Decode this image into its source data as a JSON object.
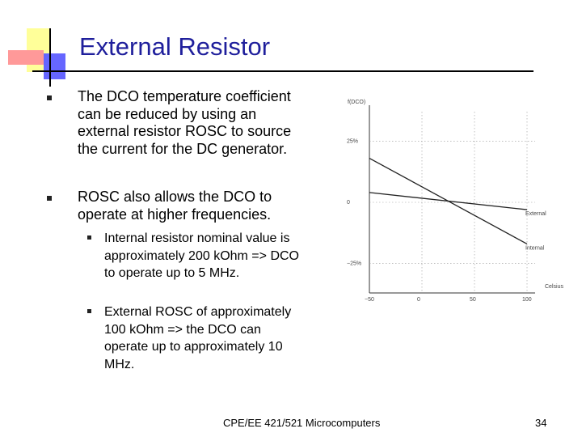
{
  "slide": {
    "title": "External Resistor",
    "bullets": [
      "The DCO temperature coefficient can be reduced by using an external resistor ROSC to source the current for the DC generator.",
      "ROSC also allows the DCO to operate at higher frequencies."
    ],
    "sub_bullets": [
      "Internal resistor nominal value is approximately 200 kOhm => DCO to operate up to 5 MHz.",
      "External ROSC of approximately 100 kOhm => the DCO can operate up to approximately 10 MHz."
    ],
    "footer": "CPE/EE 421/521 Microcomputers",
    "page_number": "34"
  },
  "colors": {
    "title": "#1f1f9c",
    "deco_yellow": "#ffff99",
    "deco_red": "#ff9999",
    "deco_blue": "#6666ff"
  },
  "chart_data": {
    "type": "line",
    "x_ticks": [
      "−50",
      "0",
      "50",
      "100"
    ],
    "y_ticks": [
      "25%",
      "0",
      "−25%"
    ],
    "y_top_label": "f(DCO)",
    "xlabel": "Celsius",
    "xlim": [
      -50,
      100
    ],
    "ylim": [
      -37,
      37
    ],
    "series": [
      {
        "name": "External",
        "x": [
          -50,
          100
        ],
        "y": [
          4,
          -3
        ]
      },
      {
        "name": "Internal",
        "x": [
          -50,
          100
        ],
        "y": [
          18,
          -17
        ]
      }
    ]
  }
}
